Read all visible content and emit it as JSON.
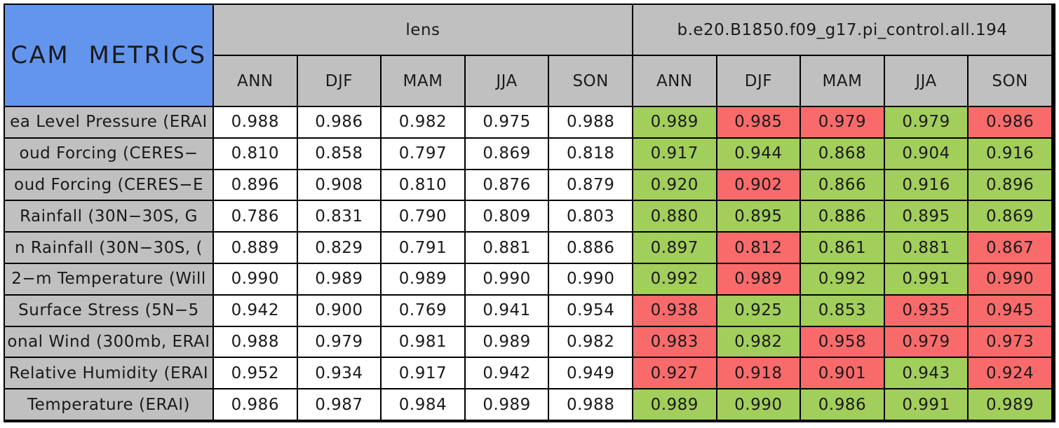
{
  "title": "CAM METRICS",
  "palette": {
    "green": "#a2ce5c",
    "red": "#f96b6b",
    "blue": "#6495ed",
    "gray": "#c0c0c0",
    "white": "#ffffff"
  },
  "chart_data": {
    "type": "table",
    "title": "CAM METRICS",
    "column_groups": [
      "lens",
      "b.e20.B1850.f09_g17.pi_control.all.194"
    ],
    "seasons": [
      "ANN",
      "DJF",
      "MAM",
      "JJA",
      "SON"
    ],
    "cell_color_meaning": "control-run cells are shaded green or red; lens cells are white",
    "rows": [
      {
        "label": "ea Level Pressure (ERAI",
        "lens": [
          "0.988",
          "0.986",
          "0.982",
          "0.975",
          "0.988"
        ],
        "control": [
          "0.989",
          "0.985",
          "0.979",
          "0.979",
          "0.986"
        ],
        "control_colors": [
          "green",
          "red",
          "red",
          "green",
          "red"
        ]
      },
      {
        "label": "oud Forcing (CERES−",
        "lens": [
          "0.810",
          "0.858",
          "0.797",
          "0.869",
          "0.818"
        ],
        "control": [
          "0.917",
          "0.944",
          "0.868",
          "0.904",
          "0.916"
        ],
        "control_colors": [
          "green",
          "green",
          "green",
          "green",
          "green"
        ]
      },
      {
        "label": "oud Forcing (CERES−E",
        "lens": [
          "0.896",
          "0.908",
          "0.810",
          "0.876",
          "0.879"
        ],
        "control": [
          "0.920",
          "0.902",
          "0.866",
          "0.916",
          "0.896"
        ],
        "control_colors": [
          "green",
          "red",
          "green",
          "green",
          "green"
        ]
      },
      {
        "label": "Rainfall (30N−30S, G",
        "lens": [
          "0.786",
          "0.831",
          "0.790",
          "0.809",
          "0.803"
        ],
        "control": [
          "0.880",
          "0.895",
          "0.886",
          "0.895",
          "0.869"
        ],
        "control_colors": [
          "green",
          "green",
          "green",
          "green",
          "green"
        ]
      },
      {
        "label": "n Rainfall (30N−30S, (",
        "lens": [
          "0.889",
          "0.829",
          "0.791",
          "0.881",
          "0.886"
        ],
        "control": [
          "0.897",
          "0.812",
          "0.861",
          "0.881",
          "0.867"
        ],
        "control_colors": [
          "green",
          "red",
          "green",
          "green",
          "red"
        ]
      },
      {
        "label": "2−m Temperature (Will",
        "lens": [
          "0.990",
          "0.989",
          "0.989",
          "0.990",
          "0.990"
        ],
        "control": [
          "0.992",
          "0.989",
          "0.992",
          "0.991",
          "0.990"
        ],
        "control_colors": [
          "green",
          "red",
          "green",
          "green",
          "red"
        ]
      },
      {
        "label": "Surface Stress (5N−5",
        "lens": [
          "0.942",
          "0.900",
          "0.769",
          "0.941",
          "0.954"
        ],
        "control": [
          "0.938",
          "0.925",
          "0.853",
          "0.935",
          "0.945"
        ],
        "control_colors": [
          "red",
          "green",
          "green",
          "red",
          "red"
        ]
      },
      {
        "label": "onal Wind (300mb, ERAI",
        "lens": [
          "0.988",
          "0.979",
          "0.981",
          "0.989",
          "0.982"
        ],
        "control": [
          "0.983",
          "0.982",
          "0.958",
          "0.979",
          "0.973"
        ],
        "control_colors": [
          "red",
          "green",
          "red",
          "red",
          "red"
        ]
      },
      {
        "label": "Relative Humidity (ERAI",
        "lens": [
          "0.952",
          "0.934",
          "0.917",
          "0.942",
          "0.949"
        ],
        "control": [
          "0.927",
          "0.918",
          "0.901",
          "0.943",
          "0.924"
        ],
        "control_colors": [
          "red",
          "red",
          "red",
          "green",
          "red"
        ]
      },
      {
        "label": "Temperature (ERAI)",
        "lens": [
          "0.986",
          "0.987",
          "0.984",
          "0.989",
          "0.988"
        ],
        "control": [
          "0.989",
          "0.990",
          "0.986",
          "0.991",
          "0.989"
        ],
        "control_colors": [
          "green",
          "green",
          "green",
          "green",
          "green"
        ]
      }
    ]
  }
}
